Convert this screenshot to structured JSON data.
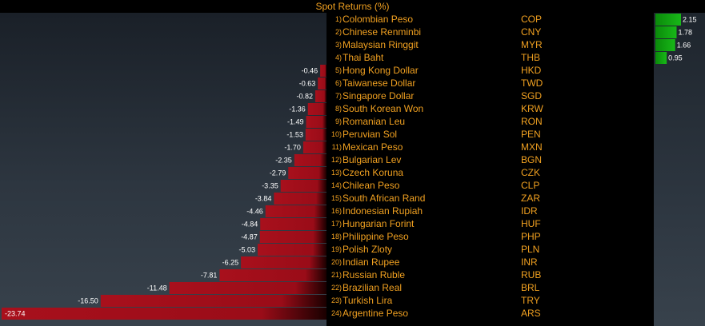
{
  "header": {
    "title": "Spot Returns (%)"
  },
  "colors": {
    "negative": "#b0101e",
    "positive": "#10a010",
    "text": "#f0a020"
  },
  "chart_data": {
    "type": "bar",
    "title": "Spot Returns (%)",
    "orientation": "horizontal",
    "grid": false,
    "categories": [
      "Colombian Peso",
      "Chinese Renminbi",
      "Malaysian Ringgit",
      "Thai Baht",
      "Hong Kong Dollar",
      "Taiwanese Dollar",
      "Singapore Dollar",
      "South Korean Won",
      "Romanian Leu",
      "Peruvian Sol",
      "Mexican Peso",
      "Bulgarian Lev",
      "Czech Koruna",
      "Chilean Peso",
      "South African Rand",
      "Indonesian Rupiah",
      "Hungarian Forint",
      "Philippine Peso",
      "Polish Zloty",
      "Indian Rupee",
      "Russian Ruble",
      "Brazilian Real",
      "Turkish Lira",
      "Argentine Peso"
    ],
    "codes": [
      "COP",
      "CNY",
      "MYR",
      "THB",
      "HKD",
      "TWD",
      "SGD",
      "KRW",
      "RON",
      "PEN",
      "MXN",
      "BGN",
      "CZK",
      "CLP",
      "ZAR",
      "IDR",
      "HUF",
      "PHP",
      "PLN",
      "INR",
      "RUB",
      "BRL",
      "TRY",
      "ARS"
    ],
    "ranks": [
      "1)",
      "2)",
      "3)",
      "4)",
      "5)",
      "6)",
      "7)",
      "8)",
      "9)",
      "10)",
      "11)",
      "12)",
      "13)",
      "14)",
      "15)",
      "16)",
      "17)",
      "18)",
      "19)",
      "20)",
      "21)",
      "22)",
      "23)",
      "24)"
    ],
    "values": [
      2.15,
      1.78,
      1.66,
      0.95,
      -0.46,
      -0.63,
      -0.82,
      -1.36,
      -1.49,
      -1.53,
      -1.7,
      -2.35,
      -2.79,
      -3.35,
      -3.84,
      -4.46,
      -4.84,
      -4.87,
      -5.03,
      -6.25,
      -7.81,
      -11.48,
      -16.5,
      -23.74
    ],
    "labels": [
      "2.15",
      "1.78",
      "1.66",
      "0.95",
      "-0.46",
      "-0.63",
      "-0.82",
      "-1.36",
      "-1.49",
      "-1.53",
      "-1.70",
      "-2.35",
      "-2.79",
      "-3.35",
      "-3.84",
      "-4.46",
      "-4.84",
      "-4.87",
      "-5.03",
      "-6.25",
      "-7.81",
      "-11.48",
      "-16.50",
      "-23.74"
    ],
    "negative_range": [
      -23.74,
      0
    ],
    "positive_range": [
      0,
      2.15
    ]
  }
}
